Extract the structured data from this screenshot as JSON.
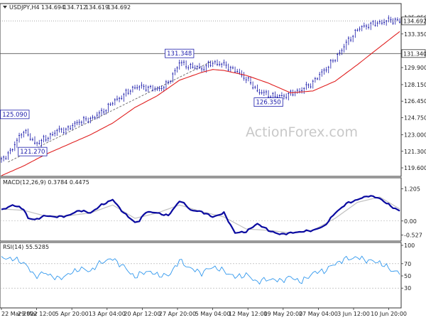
{
  "chart_data": {
    "type": "line",
    "symbol": "USDJPY,H4",
    "quote": [
      "134.694",
      "134.712",
      "134.619",
      "134.692"
    ],
    "watermark": "ActionForex.com",
    "x_tick_labels": [
      "22 Mar 2022",
      "29 Mar 12:00",
      "5 Apr 20:00",
      "13 Apr 04:00",
      "20 Apr 12:00",
      "27 Apr 20:00",
      "5 May 04:00",
      "12 May 12:00",
      "19 May 20:00",
      "27 May 04:00",
      "3 Jun 12:00",
      "10 Jun 20:00"
    ],
    "price_panel": {
      "ylim": [
        118.8,
        136.4
      ],
      "ticks": [
        "135.050",
        "133.350",
        "131.340",
        "129.900",
        "128.150",
        "126.450",
        "124.750",
        "123.000",
        "121.300",
        "119.600"
      ],
      "current_price": "134.692",
      "level_line": "131.340",
      "annotations": [
        {
          "text": "125.090",
          "x": 6,
          "y": 125.09
        },
        {
          "text": "121.270",
          "x": 14,
          "y": 121.27
        },
        {
          "text": "131.348",
          "x": 80,
          "y": 131.35
        },
        {
          "text": "126.350",
          "x": 120,
          "y": 126.35
        }
      ],
      "close_x": [
        0,
        5,
        10,
        15,
        20,
        25,
        30,
        35,
        40,
        45,
        50,
        55,
        60,
        65,
        70,
        75,
        80,
        85,
        90,
        95,
        100,
        105,
        110,
        115,
        120,
        125,
        130,
        135,
        140,
        145,
        150,
        155,
        160,
        165,
        170,
        175,
        179
      ],
      "close": [
        120.3,
        121.6,
        123.5,
        122.1,
        122.6,
        123.4,
        123.6,
        124.4,
        124.6,
        125.3,
        126.3,
        127.1,
        127.9,
        127.9,
        127.6,
        128.3,
        130.4,
        130.0,
        129.8,
        130.4,
        130.2,
        129.6,
        128.8,
        127.5,
        127.1,
        126.9,
        127.2,
        127.6,
        128.4,
        129.6,
        130.8,
        132.4,
        133.8,
        134.3,
        134.5,
        134.8,
        134.7
      ],
      "ma_x": [
        0,
        10,
        20,
        30,
        40,
        50,
        60,
        70,
        80,
        90,
        95,
        100,
        110,
        120,
        130,
        140,
        150,
        160,
        170,
        179
      ],
      "ma": [
        118.8,
        119.8,
        121.0,
        122.0,
        123.0,
        124.2,
        125.8,
        127.0,
        128.6,
        129.4,
        129.7,
        129.6,
        129.1,
        128.3,
        127.3,
        127.5,
        128.5,
        130.2,
        132.0,
        133.6
      ],
      "trendline": {
        "x": [
          3,
          95
        ],
        "y": [
          120.2,
          130.6
        ]
      },
      "line_color": "#1a1aaa",
      "ma_color": "#e02020"
    },
    "macd_panel": {
      "label": "MACD(12,26,9) 0.3784 0.4475",
      "ylim": [
        -0.7,
        1.3
      ],
      "ticks": [
        "1.205",
        "0.00",
        "-0.527"
      ],
      "macd_x": [
        0,
        5,
        10,
        12,
        15,
        20,
        25,
        30,
        35,
        40,
        45,
        50,
        55,
        60,
        62,
        65,
        70,
        75,
        80,
        83,
        85,
        90,
        95,
        100,
        105,
        110,
        115,
        120,
        125,
        130,
        135,
        140,
        145,
        150,
        155,
        160,
        165,
        170,
        175,
        179
      ],
      "macd": [
        0.4,
        0.6,
        0.45,
        0.1,
        0.05,
        0.2,
        0.15,
        0.2,
        0.4,
        0.3,
        0.6,
        0.8,
        0.3,
        -0.05,
        0.0,
        0.35,
        0.3,
        0.2,
        0.75,
        0.6,
        0.4,
        0.35,
        0.15,
        0.3,
        -0.45,
        -0.4,
        -0.1,
        -0.35,
        -0.5,
        -0.45,
        -0.4,
        -0.35,
        -0.2,
        0.3,
        0.65,
        0.8,
        0.95,
        0.85,
        0.55,
        0.38
      ],
      "signal_x": [
        0,
        10,
        20,
        30,
        40,
        50,
        60,
        70,
        80,
        90,
        100,
        110,
        120,
        130,
        140,
        150,
        160,
        170,
        179
      ],
      "signal": [
        0.45,
        0.4,
        0.18,
        0.2,
        0.3,
        0.6,
        0.1,
        0.3,
        0.6,
        0.35,
        0.15,
        -0.3,
        -0.35,
        -0.45,
        -0.35,
        0.1,
        0.7,
        0.9,
        0.45
      ],
      "macd_color": "#0a0aa0",
      "signal_color": "#c0c0c0"
    },
    "rsi_panel": {
      "label": "RSI(14) 55.5285",
      "ylim": [
        0,
        100
      ],
      "ticks": [
        "100",
        "70",
        "50",
        "30"
      ],
      "levels": [
        70,
        30
      ],
      "x": [
        0,
        5,
        10,
        15,
        20,
        25,
        30,
        35,
        40,
        45,
        50,
        55,
        60,
        65,
        70,
        75,
        80,
        85,
        90,
        95,
        100,
        105,
        110,
        115,
        120,
        125,
        130,
        135,
        140,
        145,
        150,
        155,
        160,
        165,
        170,
        175,
        179
      ],
      "values": [
        80,
        78,
        72,
        50,
        55,
        45,
        52,
        62,
        58,
        73,
        78,
        65,
        48,
        58,
        52,
        50,
        75,
        62,
        55,
        65,
        58,
        48,
        52,
        40,
        45,
        42,
        48,
        40,
        55,
        58,
        70,
        78,
        80,
        75,
        72,
        60,
        55
      ],
      "color": "#3399ee"
    }
  }
}
